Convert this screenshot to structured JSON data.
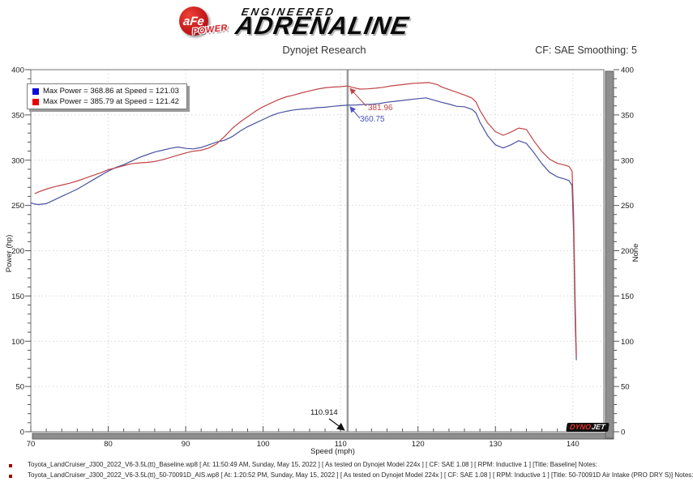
{
  "header": {
    "logo": {
      "brand": "aFe",
      "brand_sub": "POWER",
      "line1": "ENGINEERED",
      "line2": "ADRENALINE"
    },
    "title": "Dynojet Research",
    "smoothing": "CF: SAE Smoothing: 5"
  },
  "legend": {
    "entries": [
      {
        "color": "#0b0bd6",
        "label": "Max Power = 368.86 at Speed = 121.03"
      },
      {
        "color": "#e80000",
        "label": "Max Power = 385.79 at Speed = 121.42"
      }
    ]
  },
  "annotations": {
    "cursor_x": "110.914",
    "red_value": "381.96",
    "blue_value": "360.75"
  },
  "watermark": {
    "dyno": "DYNO",
    "jet": "JET"
  },
  "footer": {
    "runs": [
      {
        "text": "Toyota_LandCruiser_J300_2022_V6-3.5L(tt)_Baseline.wp8 [ At: 11:50:49 AM, Sunday, May 15, 2022 ] [ As tested on Dynojet Model 224x ] [ CF: SAE 1.08 ] [ RPM: Inductive 1 ] [Title: Baseline]  Notes:"
      },
      {
        "text": "Toyota_LandCruiser_J300_2022_V6-3.5L(tt)_50-70091D_AIS.wp8 [ At: 1:20:52 PM, Sunday, May 15, 2022 ] [ As tested on Dynojet Model 224x ] [ CF: SAE 1.08 ] [ RPM: Inductive 1 ] [Title: 50-70091D Air Intake (PRO DRY S)]  Notes:"
      }
    ]
  },
  "chart_data": {
    "type": "line",
    "title": "Dynojet Research",
    "xlabel": "Speed (mph)",
    "ylabel": "Power (hp)",
    "ylabel_right": "None",
    "xlim": [
      70,
      144
    ],
    "ylim": [
      0,
      400
    ],
    "x_ticks": [
      70,
      80,
      90,
      100,
      110,
      120,
      130,
      140
    ],
    "y_ticks": [
      0,
      50,
      100,
      150,
      200,
      250,
      300,
      350,
      400
    ],
    "x_minor_step": 2,
    "y_minor_step": 10,
    "x_gridlines": [
      80,
      90,
      100,
      110,
      120,
      130,
      140
    ],
    "y_gridlines": [
      50,
      100,
      150,
      200,
      250,
      300,
      350
    ],
    "grid": "dashed",
    "legend_position": "top-left",
    "cursor": {
      "x": 110.914,
      "baseline_hp": 360.75,
      "intake_hp": 381.96
    },
    "colors": {
      "curve_baseline": "#4a52a0",
      "curve_intake": "#c04448",
      "annotation_blue": "#4a52c0",
      "annotation_red": "#c04448",
      "cursor_line": "#9b9b9b",
      "grid": "#d8d8d8",
      "scrollbar": "#8e8e8e",
      "border": "#707070"
    },
    "series": [
      {
        "name": "Baseline",
        "color": "#4a52a0",
        "max_power": 368.86,
        "max_speed": 121.03,
        "points": [
          [
            70,
            253
          ],
          [
            70.5,
            251.5
          ],
          [
            71,
            251
          ],
          [
            72,
            252
          ],
          [
            73,
            256
          ],
          [
            74,
            260
          ],
          [
            75,
            264
          ],
          [
            76,
            268
          ],
          [
            77,
            273
          ],
          [
            78,
            278
          ],
          [
            79,
            283
          ],
          [
            80,
            288
          ],
          [
            81,
            292
          ],
          [
            82,
            295
          ],
          [
            83,
            299
          ],
          [
            84,
            303
          ],
          [
            85,
            306
          ],
          [
            86,
            309
          ],
          [
            87,
            311
          ],
          [
            88,
            313
          ],
          [
            89,
            314.5
          ],
          [
            90,
            313
          ],
          [
            91,
            312.5
          ],
          [
            92,
            314
          ],
          [
            93,
            317
          ],
          [
            94,
            320
          ],
          [
            95,
            322
          ],
          [
            96,
            326
          ],
          [
            97,
            332
          ],
          [
            98,
            337
          ],
          [
            99,
            341
          ],
          [
            100,
            345
          ],
          [
            101,
            349
          ],
          [
            102,
            352
          ],
          [
            103,
            354
          ],
          [
            104,
            355.5
          ],
          [
            105,
            356.5
          ],
          [
            106,
            357
          ],
          [
            107,
            358
          ],
          [
            108,
            358.5
          ],
          [
            109,
            359.5
          ],
          [
            110,
            360.3
          ],
          [
            110.914,
            360.75
          ],
          [
            112,
            361
          ],
          [
            113,
            361.5
          ],
          [
            114,
            361.8
          ],
          [
            115,
            362.5
          ],
          [
            116,
            364
          ],
          [
            117,
            365
          ],
          [
            118,
            366
          ],
          [
            119,
            367
          ],
          [
            120,
            368
          ],
          [
            121.03,
            368.86
          ],
          [
            122,
            366.5
          ],
          [
            123,
            364
          ],
          [
            124,
            362
          ],
          [
            125,
            359.5
          ],
          [
            126,
            359
          ],
          [
            127,
            356
          ],
          [
            127.5,
            352
          ],
          [
            128,
            342
          ],
          [
            129,
            327
          ],
          [
            130,
            317
          ],
          [
            131,
            313.5
          ],
          [
            132,
            317
          ],
          [
            133,
            321.5
          ],
          [
            134,
            318.5
          ],
          [
            135,
            308
          ],
          [
            136,
            296
          ],
          [
            137,
            286.5
          ],
          [
            138,
            281.5
          ],
          [
            139,
            279
          ],
          [
            139.5,
            277.5
          ],
          [
            139.9,
            272
          ],
          [
            140.1,
            220
          ],
          [
            140.3,
            120
          ],
          [
            140.45,
            79
          ]
        ]
      },
      {
        "name": "50-70091D Air Intake (PRO DRY S)",
        "color": "#c04448",
        "max_power": 385.79,
        "max_speed": 121.42,
        "points": [
          [
            70.5,
            263
          ],
          [
            71,
            265
          ],
          [
            72,
            268
          ],
          [
            73,
            270.5
          ],
          [
            74,
            272.5
          ],
          [
            75,
            274.5
          ],
          [
            76,
            277
          ],
          [
            77,
            280
          ],
          [
            78,
            283
          ],
          [
            79,
            286
          ],
          [
            80,
            289.5
          ],
          [
            81,
            291.5
          ],
          [
            82,
            294
          ],
          [
            83,
            296
          ],
          [
            84,
            297
          ],
          [
            85,
            297.5
          ],
          [
            86,
            298.5
          ],
          [
            87,
            300.5
          ],
          [
            88,
            303
          ],
          [
            89,
            305.5
          ],
          [
            90,
            308
          ],
          [
            91,
            310
          ],
          [
            92,
            311
          ],
          [
            93,
            313.5
          ],
          [
            94,
            318
          ],
          [
            95,
            326
          ],
          [
            96,
            335
          ],
          [
            97,
            342
          ],
          [
            98,
            348
          ],
          [
            99,
            354
          ],
          [
            100,
            359
          ],
          [
            101,
            363
          ],
          [
            102,
            367
          ],
          [
            103,
            370
          ],
          [
            104,
            372
          ],
          [
            105,
            374.5
          ],
          [
            106,
            376.5
          ],
          [
            107,
            378.5
          ],
          [
            108,
            380
          ],
          [
            109,
            380.8
          ],
          [
            110,
            381.2
          ],
          [
            110.914,
            381.96
          ],
          [
            111.5,
            380.5
          ],
          [
            112.5,
            378.5
          ],
          [
            113.5,
            378.8
          ],
          [
            114.5,
            379.5
          ],
          [
            115.5,
            380.5
          ],
          [
            116.5,
            382
          ],
          [
            117.5,
            383
          ],
          [
            118.5,
            384
          ],
          [
            119.5,
            385
          ],
          [
            120.5,
            385.3
          ],
          [
            121.42,
            385.79
          ],
          [
            122.5,
            383.5
          ],
          [
            123,
            381
          ],
          [
            124,
            378
          ],
          [
            125,
            375
          ],
          [
            126,
            372
          ],
          [
            127,
            368.5
          ],
          [
            127.5,
            364
          ],
          [
            128,
            355
          ],
          [
            129,
            341
          ],
          [
            130,
            331.5
          ],
          [
            131,
            327.5
          ],
          [
            132,
            331
          ],
          [
            133,
            335.5
          ],
          [
            134,
            334
          ],
          [
            135,
            321
          ],
          [
            136,
            309.5
          ],
          [
            137,
            301
          ],
          [
            138,
            296.5
          ],
          [
            139,
            294.5
          ],
          [
            139.5,
            293
          ],
          [
            139.9,
            288
          ],
          [
            140.1,
            240
          ],
          [
            140.3,
            140
          ],
          [
            140.45,
            83
          ]
        ]
      }
    ]
  }
}
